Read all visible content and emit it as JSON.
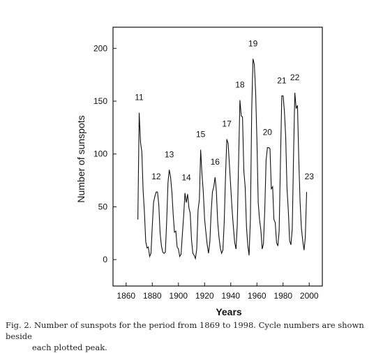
{
  "chart_data": {
    "type": "line",
    "title": "",
    "xlabel": "Years",
    "ylabel": "Number of sunspots",
    "xlim": [
      1850,
      2010
    ],
    "ylim": [
      -25,
      220
    ],
    "grid": false,
    "x_ticks": [
      "1860",
      "1880",
      "1900",
      "1920",
      "1940",
      "1960",
      "1980",
      "2000"
    ],
    "y_ticks": [
      "0",
      "50",
      "100",
      "150",
      "200"
    ],
    "series": [
      {
        "x": [
          1869,
          1870,
          1871,
          1872,
          1873,
          1874,
          1875,
          1876,
          1877,
          1878,
          1879,
          1880,
          1881,
          1882,
          1883,
          1884,
          1885,
          1886,
          1887,
          1888,
          1889,
          1890,
          1891,
          1892,
          1893,
          1894,
          1895,
          1896,
          1897,
          1898,
          1899,
          1900,
          1901,
          1902,
          1903,
          1904,
          1905,
          1906,
          1907,
          1908,
          1909,
          1910,
          1911,
          1912,
          1913,
          1914,
          1915,
          1916,
          1917,
          1918,
          1919,
          1920,
          1921,
          1922,
          1923,
          1924,
          1925,
          1926,
          1927,
          1928,
          1929,
          1930,
          1931,
          1932,
          1933,
          1934,
          1935,
          1936,
          1937,
          1938,
          1939,
          1940,
          1941,
          1942,
          1943,
          1944,
          1945,
          1946,
          1947,
          1948,
          1949,
          1950,
          1951,
          1952,
          1953,
          1954,
          1955,
          1956,
          1957,
          1958,
          1959,
          1960,
          1961,
          1962,
          1963,
          1964,
          1965,
          1966,
          1967,
          1968,
          1969,
          1970,
          1971,
          1972,
          1973,
          1974,
          1975,
          1976,
          1977,
          1978,
          1979,
          1980,
          1981,
          1982,
          1983,
          1984,
          1985,
          1986,
          1987,
          1988,
          1989,
          1990,
          1991,
          1992,
          1993,
          1994,
          1995,
          1996,
          1997,
          1998
        ],
        "values": [
          38,
          139,
          111,
          102,
          66,
          45,
          17,
          11,
          12,
          3,
          6,
          32,
          54,
          60,
          64,
          64,
          52,
          25,
          13,
          7,
          6,
          7,
          36,
          73,
          85,
          78,
          64,
          42,
          26,
          27,
          12,
          10,
          3,
          5,
          24,
          42,
          63,
          54,
          62,
          49,
          44,
          19,
          6,
          4,
          1,
          10,
          47,
          57,
          104,
          81,
          64,
          38,
          26,
          14,
          6,
          17,
          44,
          64,
          69,
          78,
          65,
          36,
          21,
          11,
          6,
          9,
          36,
          80,
          114,
          110,
          89,
          68,
          48,
          31,
          16,
          10,
          33,
          93,
          151,
          136,
          135,
          84,
          69,
          31,
          14,
          4,
          38,
          142,
          190,
          185,
          159,
          112,
          54,
          38,
          28,
          10,
          15,
          47,
          94,
          106,
          106,
          105,
          67,
          69,
          38,
          35,
          16,
          13,
          27,
          93,
          155,
          155,
          141,
          116,
          67,
          46,
          18,
          14,
          29,
          100,
          158,
          143,
          146,
          94,
          55,
          30,
          18,
          9,
          21,
          64
        ]
      }
    ],
    "annotations": [
      {
        "text": "11",
        "x": 1870
      },
      {
        "text": "12",
        "x": 1883
      },
      {
        "text": "13",
        "x": 1893
      },
      {
        "text": "14",
        "x": 1906
      },
      {
        "text": "15",
        "x": 1917
      },
      {
        "text": "16",
        "x": 1928
      },
      {
        "text": "17",
        "x": 1937
      },
      {
        "text": "18",
        "x": 1947
      },
      {
        "text": "19",
        "x": 1957
      },
      {
        "text": "20",
        "x": 1968
      },
      {
        "text": "21",
        "x": 1979
      },
      {
        "text": "22",
        "x": 1989
      },
      {
        "text": "23",
        "x": 2000
      }
    ]
  },
  "caption": {
    "line1": "Fig. 2. Number of sunspots for the period from 1869 to 1998. Cycle numbers are shown beside",
    "line2": "each plotted peak."
  }
}
